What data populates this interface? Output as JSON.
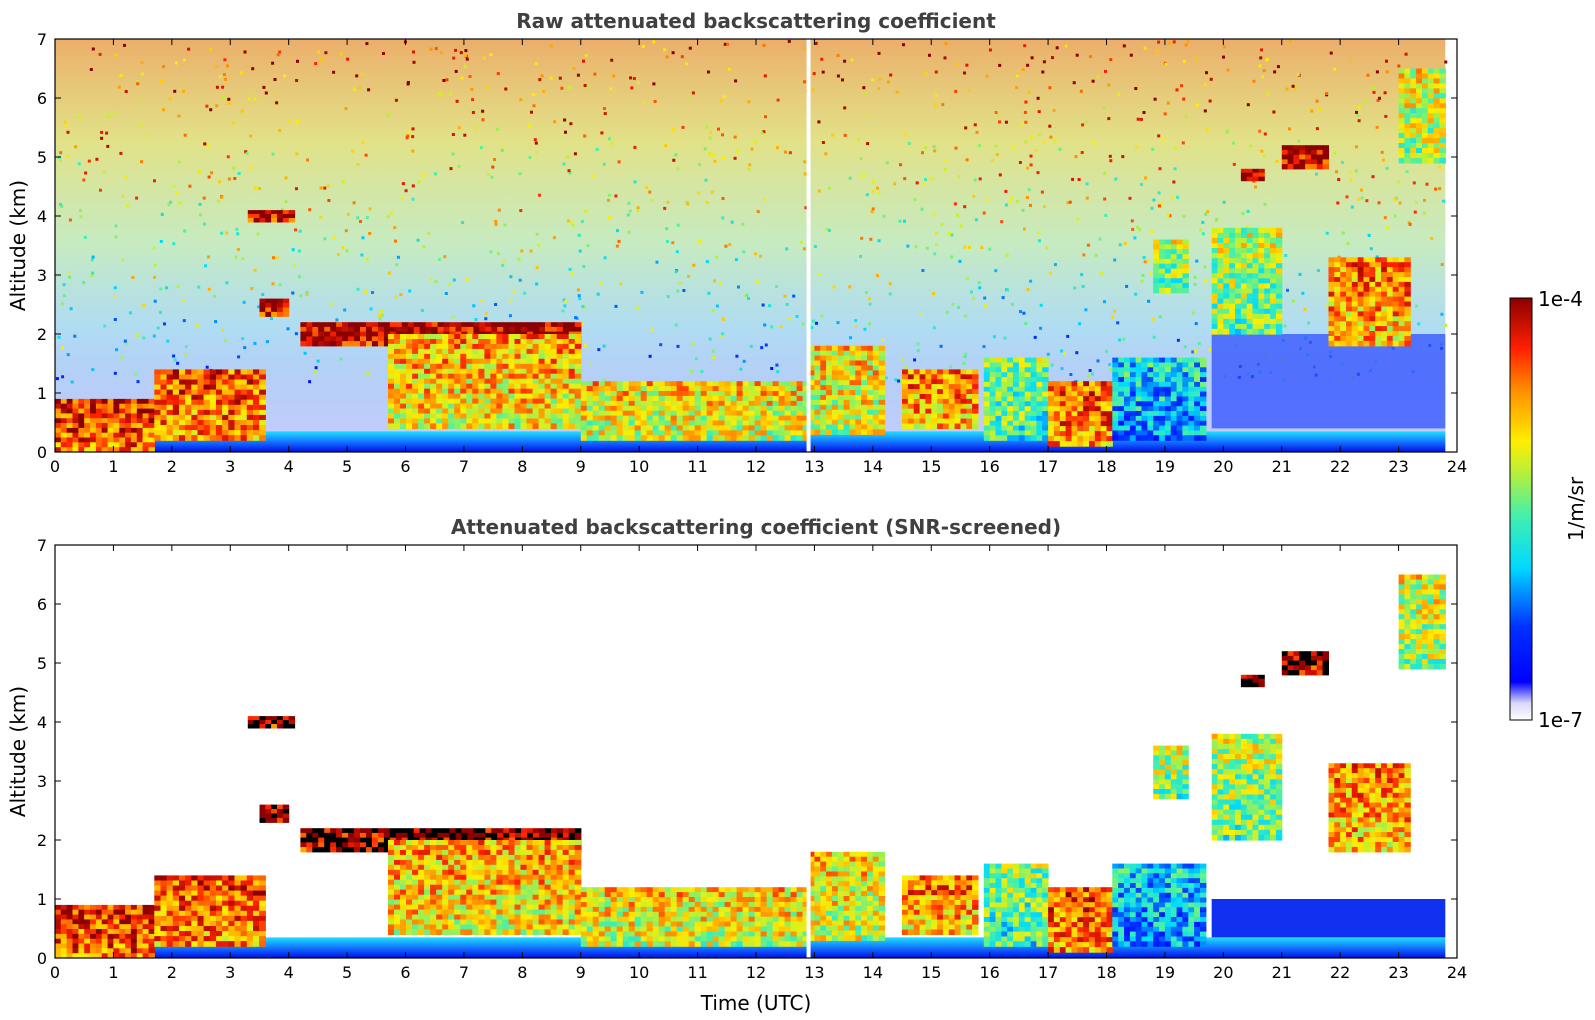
{
  "chart_data": [
    {
      "type": "heatmap",
      "title": "Raw attenuated backscattering coefficient",
      "xlabel": "",
      "ylabel": "Altitude (km)",
      "xlim": [
        0,
        24
      ],
      "ylim": [
        0,
        7
      ],
      "x_ticks": [
        "0",
        "1",
        "2",
        "3",
        "4",
        "5",
        "6",
        "7",
        "8",
        "9",
        "10",
        "11",
        "12",
        "13",
        "14",
        "15",
        "16",
        "17",
        "18",
        "19",
        "20",
        "21",
        "22",
        "23",
        "24"
      ],
      "y_ticks": [
        "0",
        "1",
        "2",
        "3",
        "4",
        "5",
        "6",
        "7"
      ],
      "data_gap_utc": 12.9,
      "data_end_utc": 23.8,
      "layers": [
        {
          "t0": 0.0,
          "t1": 1.7,
          "z0": 0.0,
          "z1": 0.9,
          "level": 0.9
        },
        {
          "t0": 1.7,
          "t1": 3.6,
          "z0": 0.2,
          "z1": 1.4,
          "level": 0.85
        },
        {
          "t0": 3.3,
          "t1": 4.1,
          "z0": 3.9,
          "z1": 4.1,
          "level": 1.0
        },
        {
          "t0": 3.5,
          "t1": 4.0,
          "z0": 2.3,
          "z1": 2.6,
          "level": 1.0
        },
        {
          "t0": 4.2,
          "t1": 9.0,
          "z0": 1.8,
          "z1": 2.2,
          "level": 1.0
        },
        {
          "t0": 5.7,
          "t1": 9.0,
          "z0": 0.4,
          "z1": 2.0,
          "level": 0.75
        },
        {
          "t0": 9.0,
          "t1": 12.9,
          "z0": 0.2,
          "z1": 1.2,
          "level": 0.7
        },
        {
          "t0": 12.9,
          "t1": 14.2,
          "z0": 0.3,
          "z1": 1.8,
          "level": 0.7
        },
        {
          "t0": 14.5,
          "t1": 15.8,
          "z0": 0.4,
          "z1": 1.4,
          "level": 0.8
        },
        {
          "t0": 15.9,
          "t1": 17.0,
          "z0": 0.2,
          "z1": 1.6,
          "level": 0.55
        },
        {
          "t0": 17.0,
          "t1": 18.1,
          "z0": 0.1,
          "z1": 1.2,
          "level": 0.85
        },
        {
          "t0": 18.1,
          "t1": 19.7,
          "z0": 0.2,
          "z1": 1.6,
          "level": 0.4
        },
        {
          "t0": 18.8,
          "t1": 19.4,
          "z0": 2.7,
          "z1": 3.6,
          "level": 0.6
        },
        {
          "t0": 19.8,
          "t1": 21.0,
          "z0": 2.0,
          "z1": 3.8,
          "level": 0.6
        },
        {
          "t0": 20.3,
          "t1": 20.7,
          "z0": 4.6,
          "z1": 4.8,
          "level": 1.0
        },
        {
          "t0": 21.0,
          "t1": 21.8,
          "z0": 4.8,
          "z1": 5.2,
          "level": 1.0
        },
        {
          "t0": 21.8,
          "t1": 23.2,
          "z0": 1.8,
          "z1": 3.3,
          "level": 0.8
        },
        {
          "t0": 23.0,
          "t1": 23.8,
          "z0": 4.9,
          "z1": 6.5,
          "level": 0.65
        }
      ]
    },
    {
      "type": "heatmap",
      "title": "Attenuated backscattering coefficient (SNR-screened)",
      "xlabel": "Time (UTC)",
      "ylabel": "Altitude (km)",
      "xlim": [
        0,
        24
      ],
      "ylim": [
        0,
        7
      ],
      "x_ticks": [
        "0",
        "1",
        "2",
        "3",
        "4",
        "5",
        "6",
        "7",
        "8",
        "9",
        "10",
        "11",
        "12",
        "13",
        "14",
        "15",
        "16",
        "17",
        "18",
        "19",
        "20",
        "21",
        "22",
        "23",
        "24"
      ],
      "y_ticks": [
        "0",
        "1",
        "2",
        "3",
        "4",
        "5",
        "6",
        "7"
      ],
      "data_gap_utc": 12.9,
      "data_end_utc": 23.8
    }
  ],
  "colorbar": {
    "label": "1/m/sr",
    "max_label": "1e-4",
    "min_label": "1e-7",
    "scale": "log",
    "range": [
      1e-07,
      0.0001
    ]
  }
}
